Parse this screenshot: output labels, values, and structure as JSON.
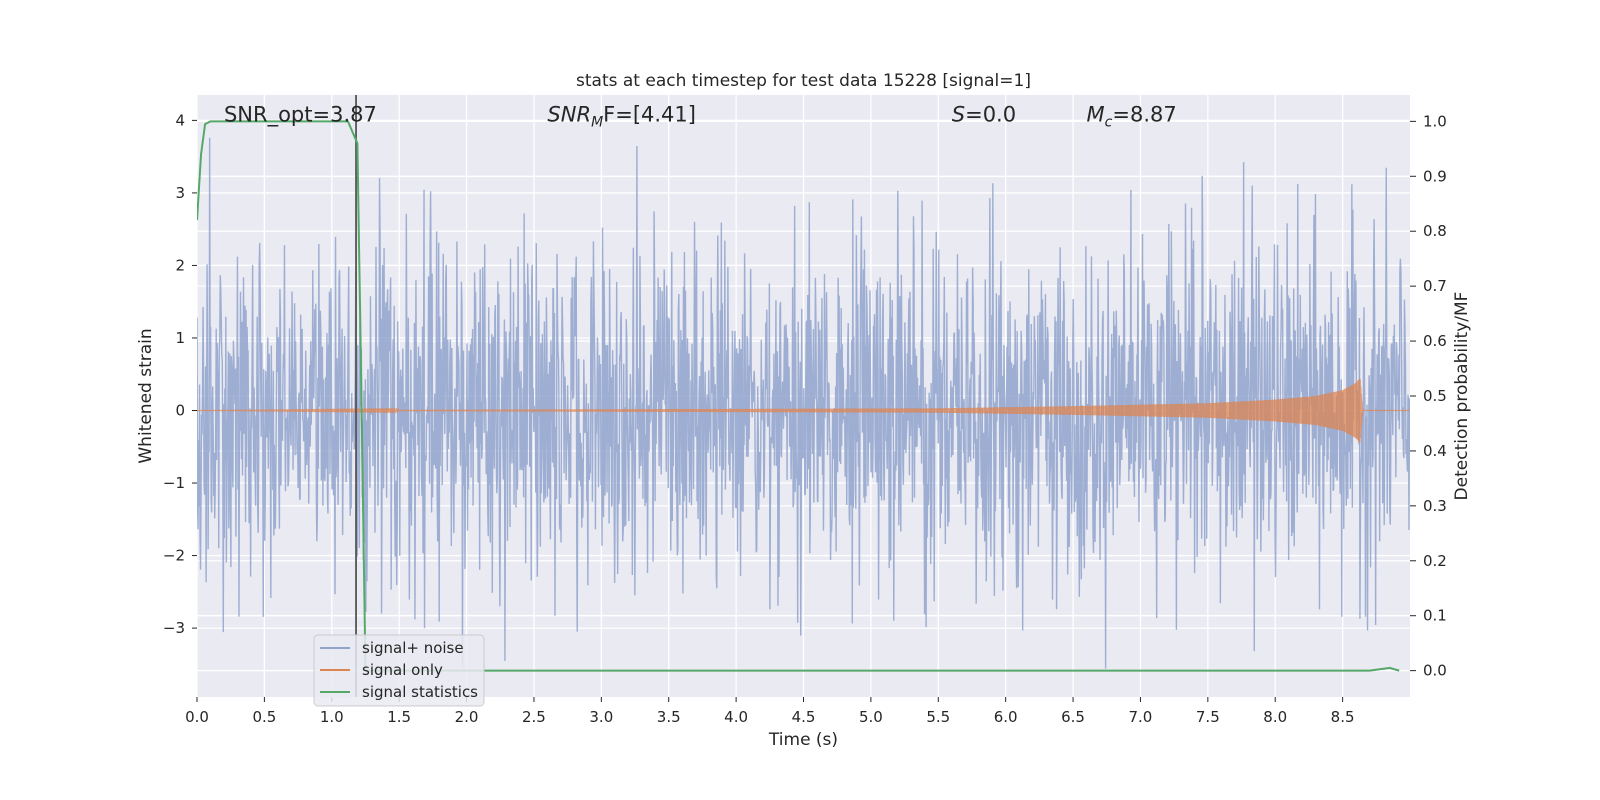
{
  "chart_data": {
    "type": "line",
    "title": "stats at each timestep for test data 15228 [signal=1]",
    "xlabel": "Time (s)",
    "ylabel": "Whitened strain",
    "y2label": "Detection probability/MF",
    "xlim": [
      0.0,
      9.0
    ],
    "ylim": [
      -3.95,
      4.35
    ],
    "y2lim": [
      -0.048,
      1.048
    ],
    "xticks": [
      "0.0",
      "0.5",
      "1.0",
      "1.5",
      "2.0",
      "2.5",
      "3.0",
      "3.5",
      "4.0",
      "4.5",
      "5.0",
      "5.5",
      "6.0",
      "6.5",
      "7.0",
      "7.5",
      "8.0",
      "8.5"
    ],
    "xtick_values": [
      0.0,
      0.5,
      1.0,
      1.5,
      2.0,
      2.5,
      3.0,
      3.5,
      4.0,
      4.5,
      5.0,
      5.5,
      6.0,
      6.5,
      7.0,
      7.5,
      8.0,
      8.5
    ],
    "yticks": [
      "4",
      "3",
      "2",
      "1",
      "0",
      "−1",
      "−2",
      "−3"
    ],
    "ytick_values": [
      4,
      3,
      2,
      1,
      0,
      -1,
      -2,
      -3
    ],
    "y2ticks": [
      "1.0",
      "0.9",
      "0.8",
      "0.7",
      "0.6",
      "0.5",
      "0.4",
      "0.3",
      "0.2",
      "0.1",
      "0.0"
    ],
    "y2tick_values": [
      1.0,
      0.9,
      0.8,
      0.7,
      0.6,
      0.5,
      0.4,
      0.3,
      0.2,
      0.1,
      0.0
    ],
    "grid": true,
    "legend_position": "lower-left",
    "annotations": [
      {
        "label": "SNR_opt=3.87",
        "x": 0.2,
        "y": 4.0
      },
      {
        "label_main": "SNR",
        "label_sub": "M",
        "label_rest": "F=[4.41]",
        "x": 2.6,
        "y": 4.0
      },
      {
        "label_main": "S",
        "label_rest": "=0.0",
        "x": 5.6,
        "y": 4.0
      },
      {
        "label_main": "M",
        "label_sub": "c",
        "label_rest": "=8.87",
        "x": 6.6,
        "y": 4.0
      }
    ],
    "vertical_line": {
      "x": 1.18,
      "color": "#555555"
    },
    "series": [
      {
        "name": "signal+ noise",
        "color": "#8fa3cc",
        "axis": "left",
        "description_values": "dense noise spanning roughly -3.6 to 4.0",
        "envelope_min": -3.6,
        "envelope_max": 4.0
      },
      {
        "name": "signal only",
        "color": "#dd8452",
        "axis": "left",
        "x": [
          0.0,
          5.5,
          6.5,
          7.5,
          8.0,
          8.3,
          8.5,
          8.6,
          8.63,
          8.65,
          9.0
        ],
        "amplitude": [
          0.0,
          0.03,
          0.06,
          0.1,
          0.15,
          0.2,
          0.28,
          0.38,
          0.45,
          0.0,
          0.0
        ]
      },
      {
        "name": "signal statistics",
        "color": "#55a868",
        "axis": "right",
        "x": [
          0.0,
          0.03,
          0.06,
          0.1,
          0.5,
          1.0,
          1.12,
          1.19,
          1.22,
          1.25,
          1.5,
          2.0,
          3.0,
          4.0,
          5.0,
          6.0,
          7.0,
          8.0,
          8.7,
          8.85,
          8.92
        ],
        "y": [
          0.82,
          0.94,
          0.995,
          1.0,
          1.0,
          1.0,
          1.0,
          0.96,
          0.5,
          0.0,
          0.0,
          0.0,
          0.0,
          0.0,
          0.0,
          0.0,
          0.0,
          0.0,
          0.0,
          0.005,
          0.0
        ]
      }
    ]
  }
}
